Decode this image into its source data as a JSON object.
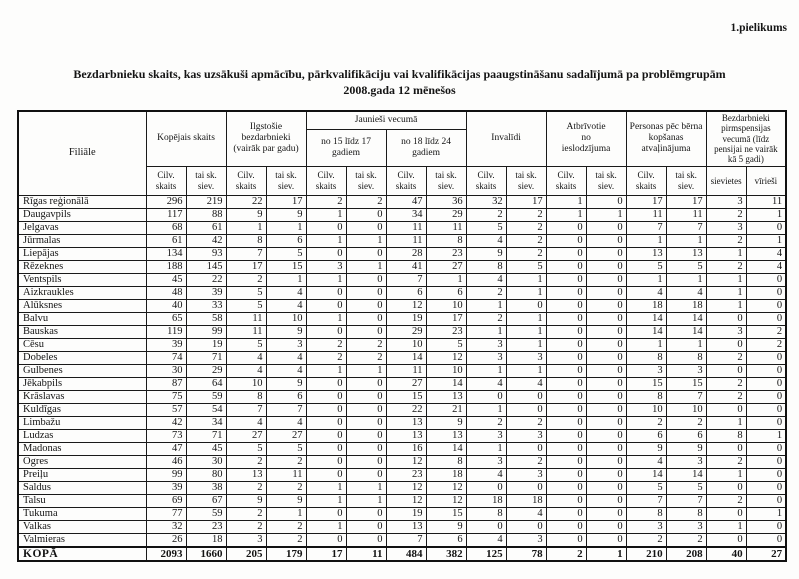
{
  "page": {
    "appendix_label": "1.pielikums",
    "title_line1": "Bezdarbnieku skaits, kas uzsākuši apmācību, pārkvalifikāciju vai kvalifikācijas paaugstināšanu sadalījumā pa problēmgrupām",
    "title_line2": "2008.gada 12 mēnešos"
  },
  "table": {
    "header": {
      "filiale": "Filiāle",
      "groups": [
        {
          "label": "Kopējais skaits"
        },
        {
          "label": "Ilgstošie\nbezdarbnieki\n(vairāk par gadu)"
        },
        {
          "label": "Jaunieši vecumā",
          "sub": [
            "no 15 līdz 17\ngadiem",
            "no 18 līdz 24\ngadiem"
          ]
        },
        {
          "label": "Invalīdi"
        },
        {
          "label": "Atbrīvotie\nno\nieslodzījuma"
        },
        {
          "label": "Personas pēc bērna\nkopšanas\natvaļinājuma"
        },
        {
          "label": "Bezdarbnieki\npirmspensijas\nvecumā (līdz\npensijai ne vairāk\nkā 5 gadi)"
        }
      ],
      "sub_headers": [
        "Cilv.\nskaits",
        "tai sk.\nsiev.",
        "Cilv.\nskaits",
        "tai sk.\nsiev.",
        "Cilv.\nskaits",
        "tai sk.\nsiev.",
        "Cilv.\nskaits",
        "tai sk.\nsiev.",
        "Cilv.\nskaits",
        "tai sk.\nsiev.",
        "Cilv.\nskaits",
        "tai sk.\nsiev.",
        "Cilv.\nskaits",
        "tai sk.\nsiev.",
        "sievietes",
        "vīrieši"
      ]
    },
    "rows": [
      {
        "name": "Rīgas reģionālā",
        "values": [
          296,
          219,
          22,
          17,
          2,
          2,
          47,
          36,
          32,
          17,
          1,
          0,
          17,
          17,
          3,
          11
        ]
      },
      {
        "name": "Daugavpils",
        "values": [
          117,
          88,
          9,
          9,
          1,
          0,
          34,
          29,
          2,
          2,
          1,
          1,
          11,
          11,
          2,
          1
        ]
      },
      {
        "name": "Jelgavas",
        "values": [
          68,
          61,
          1,
          1,
          0,
          0,
          11,
          11,
          5,
          2,
          0,
          0,
          7,
          7,
          3,
          0
        ]
      },
      {
        "name": "Jūrmalas",
        "values": [
          61,
          42,
          8,
          6,
          1,
          1,
          11,
          8,
          4,
          2,
          0,
          0,
          1,
          1,
          2,
          1
        ]
      },
      {
        "name": "Liepājas",
        "values": [
          134,
          93,
          7,
          5,
          0,
          0,
          28,
          23,
          9,
          2,
          0,
          0,
          13,
          13,
          1,
          4
        ]
      },
      {
        "name": "Rēzeknes",
        "values": [
          188,
          145,
          17,
          15,
          3,
          1,
          41,
          27,
          8,
          5,
          0,
          0,
          5,
          5,
          2,
          4
        ]
      },
      {
        "name": "Ventspils",
        "values": [
          45,
          22,
          2,
          1,
          1,
          0,
          7,
          1,
          4,
          1,
          0,
          0,
          1,
          1,
          1,
          0
        ]
      },
      {
        "name": "Aizkraukles",
        "values": [
          48,
          39,
          5,
          4,
          0,
          0,
          6,
          6,
          2,
          1,
          0,
          0,
          4,
          4,
          1,
          0
        ]
      },
      {
        "name": "Alūksnes",
        "values": [
          40,
          33,
          5,
          4,
          0,
          0,
          12,
          10,
          1,
          0,
          0,
          0,
          18,
          18,
          1,
          0
        ]
      },
      {
        "name": "Balvu",
        "values": [
          65,
          58,
          11,
          10,
          1,
          0,
          19,
          17,
          2,
          1,
          0,
          0,
          14,
          14,
          0,
          0
        ]
      },
      {
        "name": "Bauskas",
        "values": [
          119,
          99,
          11,
          9,
          0,
          0,
          29,
          23,
          1,
          1,
          0,
          0,
          14,
          14,
          3,
          2
        ]
      },
      {
        "name": "Cēsu",
        "values": [
          39,
          19,
          5,
          3,
          2,
          2,
          10,
          5,
          3,
          1,
          0,
          0,
          1,
          1,
          0,
          2
        ]
      },
      {
        "name": "Dobeles",
        "values": [
          74,
          71,
          4,
          4,
          2,
          2,
          14,
          12,
          3,
          3,
          0,
          0,
          8,
          8,
          2,
          0
        ]
      },
      {
        "name": "Gulbenes",
        "values": [
          30,
          29,
          4,
          4,
          1,
          1,
          11,
          10,
          1,
          1,
          0,
          0,
          3,
          3,
          0,
          0
        ]
      },
      {
        "name": "Jēkabpils",
        "values": [
          87,
          64,
          10,
          9,
          0,
          0,
          27,
          14,
          4,
          4,
          0,
          0,
          15,
          15,
          2,
          0
        ]
      },
      {
        "name": "Krāslavas",
        "values": [
          75,
          59,
          8,
          6,
          0,
          0,
          15,
          13,
          0,
          0,
          0,
          0,
          8,
          7,
          2,
          0
        ]
      },
      {
        "name": "Kuldīgas",
        "values": [
          57,
          54,
          7,
          7,
          0,
          0,
          22,
          21,
          1,
          0,
          0,
          0,
          10,
          10,
          0,
          0
        ]
      },
      {
        "name": "Limbažu",
        "values": [
          42,
          34,
          4,
          4,
          0,
          0,
          13,
          9,
          2,
          2,
          0,
          0,
          2,
          2,
          1,
          0
        ]
      },
      {
        "name": "Ludzas",
        "values": [
          73,
          71,
          27,
          27,
          0,
          0,
          13,
          13,
          3,
          3,
          0,
          0,
          6,
          6,
          8,
          1
        ]
      },
      {
        "name": "Madonas",
        "values": [
          47,
          45,
          5,
          5,
          0,
          0,
          16,
          14,
          1,
          0,
          0,
          0,
          9,
          9,
          0,
          0
        ]
      },
      {
        "name": "Ogres",
        "values": [
          46,
          30,
          2,
          2,
          0,
          0,
          12,
          8,
          3,
          2,
          0,
          0,
          4,
          3,
          2,
          0
        ]
      },
      {
        "name": "Preiļu",
        "values": [
          99,
          80,
          13,
          11,
          0,
          0,
          23,
          18,
          4,
          3,
          0,
          0,
          14,
          14,
          1,
          0
        ]
      },
      {
        "name": "Saldus",
        "values": [
          39,
          38,
          2,
          2,
          1,
          1,
          12,
          12,
          0,
          0,
          0,
          0,
          5,
          5,
          0,
          0
        ]
      },
      {
        "name": "Talsu",
        "values": [
          69,
          67,
          9,
          9,
          1,
          1,
          12,
          12,
          18,
          18,
          0,
          0,
          7,
          7,
          2,
          0
        ]
      },
      {
        "name": "Tukuma",
        "values": [
          77,
          59,
          2,
          1,
          0,
          0,
          19,
          15,
          8,
          4,
          0,
          0,
          8,
          8,
          0,
          1
        ]
      },
      {
        "name": "Valkas",
        "values": [
          32,
          23,
          2,
          2,
          1,
          0,
          13,
          9,
          0,
          0,
          0,
          0,
          3,
          3,
          1,
          0
        ]
      },
      {
        "name": "Valmieras",
        "values": [
          26,
          18,
          3,
          2,
          0,
          0,
          7,
          6,
          4,
          3,
          0,
          0,
          2,
          2,
          0,
          0
        ]
      }
    ],
    "total": {
      "name": "KOPĀ",
      "values": [
        2093,
        1660,
        205,
        179,
        17,
        11,
        484,
        382,
        125,
        78,
        2,
        1,
        210,
        208,
        40,
        27
      ]
    }
  }
}
